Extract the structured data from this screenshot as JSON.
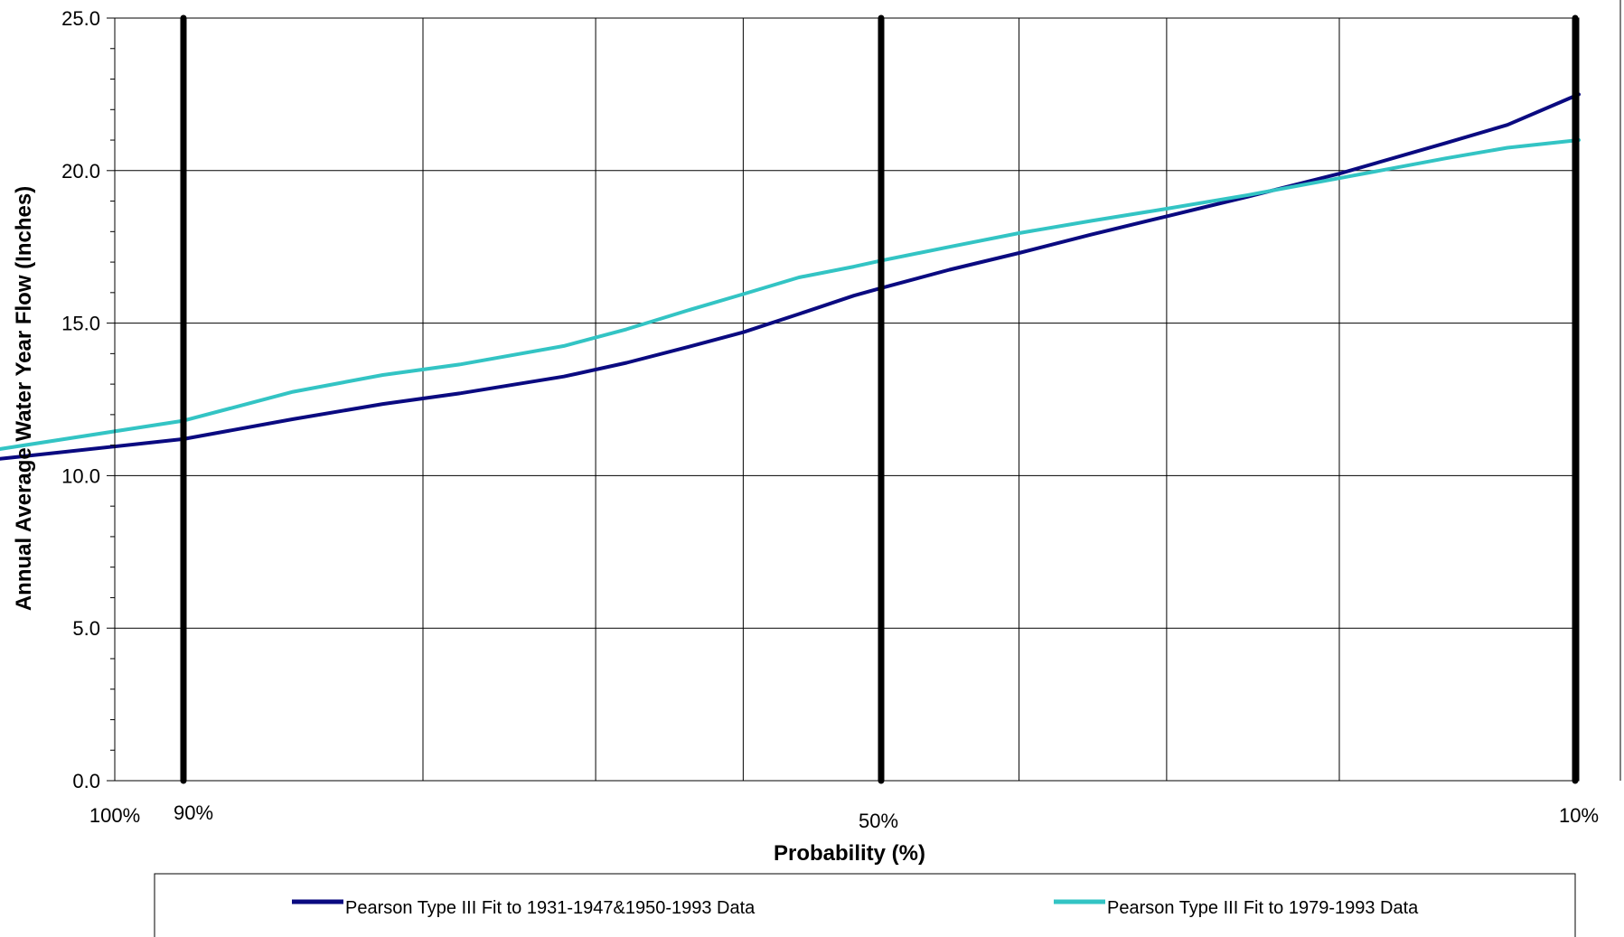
{
  "chart_data": {
    "type": "line",
    "title": "",
    "xlabel": "Probability (%)",
    "ylabel": "Annual Average Water Year Flow  (Inches)",
    "x_scale": "normal-probability",
    "x_direction": "decreasing",
    "xlim": [
      100,
      10
    ],
    "ylim": [
      0,
      25
    ],
    "yticks": [
      0,
      5,
      10,
      15,
      20,
      25
    ],
    "ytick_labels": [
      "0.0",
      "5.0",
      "10.0",
      "15.0",
      "20.0",
      "25.0"
    ],
    "xtick_labels": [
      {
        "label": "100%",
        "value": 100
      },
      {
        "label": "90%",
        "value": 90
      },
      {
        "label": "50%",
        "value": 50
      },
      {
        "label": "10%",
        "value": 10
      }
    ],
    "grid": true,
    "emphasized_gridlines": [
      90,
      50,
      10
    ],
    "legend_position": "bottom",
    "series": [
      {
        "name": "Pearson Type III Fit to 1931-1947&1950-1993 Data",
        "color": "#0a0a80",
        "points": [
          [
            97.5,
            9.8
          ],
          [
            95,
            10.5
          ],
          [
            90,
            11.2
          ],
          [
            86,
            11.85
          ],
          [
            82,
            12.35
          ],
          [
            78,
            12.7
          ],
          [
            72,
            13.25
          ],
          [
            68,
            13.7
          ],
          [
            64,
            14.2
          ],
          [
            60,
            14.7
          ],
          [
            56,
            15.3
          ],
          [
            52,
            15.9
          ],
          [
            50,
            16.15
          ],
          [
            45,
            16.75
          ],
          [
            40,
            17.3
          ],
          [
            35,
            17.9
          ],
          [
            30,
            18.5
          ],
          [
            25,
            19.15
          ],
          [
            20,
            19.9
          ],
          [
            15,
            20.9
          ],
          [
            12.5,
            21.5
          ],
          [
            10,
            22.5
          ]
        ]
      },
      {
        "name": "Pearson Type III Fit to 1979-1993 Data",
        "color": "#33c4c4",
        "points": [
          [
            97.5,
            9.4
          ],
          [
            95,
            10.8
          ],
          [
            90,
            11.8
          ],
          [
            86,
            12.75
          ],
          [
            82,
            13.3
          ],
          [
            78,
            13.65
          ],
          [
            72,
            14.25
          ],
          [
            68,
            14.8
          ],
          [
            64,
            15.4
          ],
          [
            60,
            15.95
          ],
          [
            56,
            16.5
          ],
          [
            52,
            16.85
          ],
          [
            50,
            17.05
          ],
          [
            45,
            17.5
          ],
          [
            40,
            17.95
          ],
          [
            35,
            18.35
          ],
          [
            30,
            18.75
          ],
          [
            25,
            19.2
          ],
          [
            20,
            19.75
          ],
          [
            15,
            20.4
          ],
          [
            12.5,
            20.75
          ],
          [
            10,
            21.0
          ]
        ]
      }
    ]
  }
}
